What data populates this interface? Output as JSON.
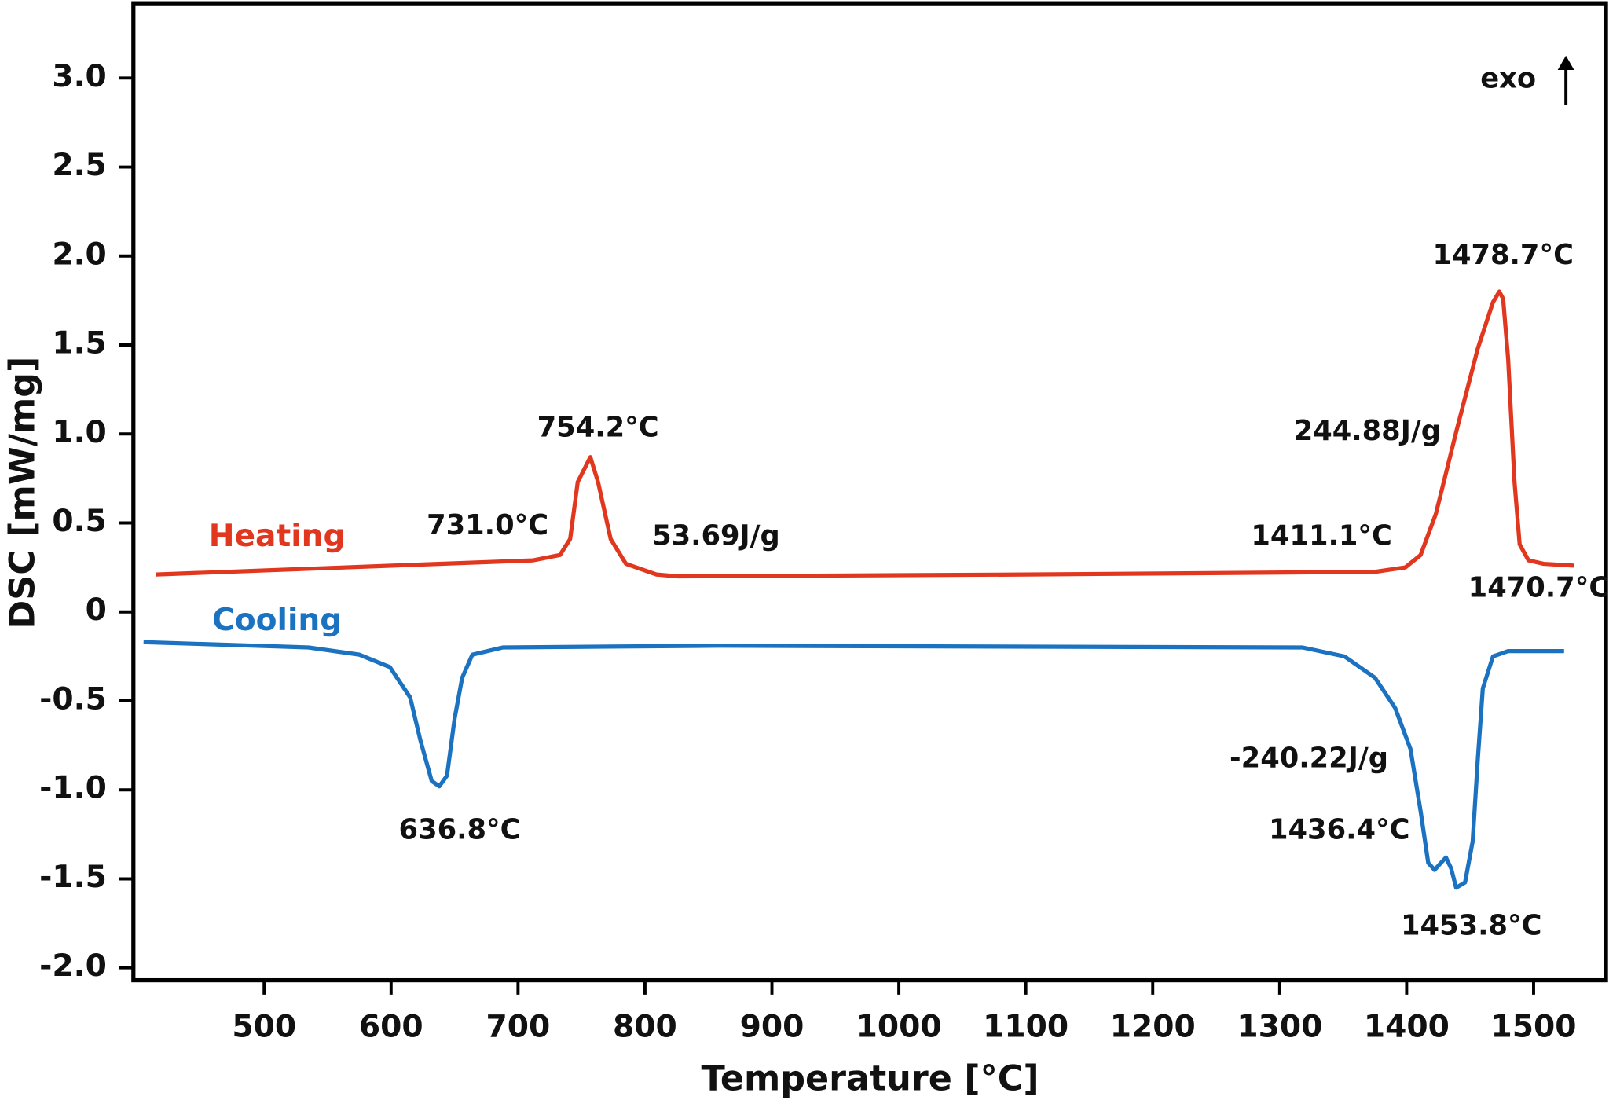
{
  "chart_data": {
    "type": "line",
    "xlabel": "Temperature [°C]",
    "ylabel": "DSC [mW/mg]",
    "xlim": [
      397,
      1557
    ],
    "ylim": [
      -2.07,
      3.42
    ],
    "xticks": [
      500,
      600,
      700,
      800,
      900,
      1000,
      1100,
      1200,
      1300,
      1400,
      1500
    ],
    "yticks": [
      {
        "value": 3,
        "label": "3.0"
      },
      2.5,
      {
        "value": 2,
        "label": "2.0"
      },
      1.5,
      {
        "value": 1,
        "label": "1.0"
      },
      0.5,
      0,
      -0.5,
      {
        "value": -1,
        "label": "-1.0"
      },
      -1.5,
      {
        "value": -2,
        "label": "-2.0"
      }
    ],
    "series": [
      {
        "name": "Heating",
        "color": "#e2371f",
        "x": [
          415,
          712,
          733,
          741,
          747,
          757,
          763,
          773,
          785,
          809,
          826,
          1100,
          1375,
          1399,
          1411,
          1423,
          1439,
          1456,
          1468,
          1473,
          1476,
          1480,
          1485,
          1489,
          1496,
          1508,
          1532
        ],
        "values": [
          0.21,
          0.29,
          0.32,
          0.41,
          0.73,
          0.87,
          0.73,
          0.41,
          0.27,
          0.21,
          0.2,
          0.21,
          0.225,
          0.25,
          0.32,
          0.55,
          1.01,
          1.48,
          1.74,
          1.8,
          1.76,
          1.42,
          0.73,
          0.38,
          0.29,
          0.27,
          0.26
        ]
      },
      {
        "name": "Cooling",
        "color": "#1a72c1",
        "x": [
          405,
          535,
          575,
          599,
          615,
          623,
          632,
          638,
          644,
          650,
          656,
          664,
          688,
          858,
          1318,
          1351,
          1375,
          1391,
          1403,
          1411,
          1417,
          1422,
          1427,
          1431,
          1435,
          1439,
          1446,
          1452,
          1456,
          1460,
          1468,
          1480,
          1524
        ],
        "values": [
          -0.17,
          -0.2,
          -0.24,
          -0.31,
          -0.48,
          -0.72,
          -0.95,
          -0.98,
          -0.92,
          -0.6,
          -0.37,
          -0.24,
          -0.2,
          -0.19,
          -0.2,
          -0.25,
          -0.37,
          -0.54,
          -0.77,
          -1.12,
          -1.41,
          -1.45,
          -1.41,
          -1.38,
          -1.44,
          -1.55,
          -1.52,
          -1.29,
          -0.83,
          -0.43,
          -0.25,
          -0.22,
          -0.22
        ]
      }
    ],
    "annotations": [
      {
        "text": "754.2°C",
        "x": 763,
        "y": 1.03
      },
      {
        "text": "731.0°C",
        "x": 676,
        "y": 0.48
      },
      {
        "text": "53.69J/g",
        "x": 856,
        "y": 0.42
      },
      {
        "text": "636.8°C",
        "x": 654,
        "y": -1.23
      },
      {
        "text": "1478.7°C",
        "x": 1476,
        "y": 2.0
      },
      {
        "text": "244.88J/g",
        "x": 1369,
        "y": 1.01
      },
      {
        "text": "1411.1°C",
        "x": 1333,
        "y": 0.42
      },
      {
        "text": "1470.7°C",
        "x": 1504,
        "y": 0.13
      },
      {
        "text": "-240.22J/g",
        "x": 1323,
        "y": -0.83
      },
      {
        "text": "1436.4°C",
        "x": 1347,
        "y": -1.23
      },
      {
        "text": "1453.8°C",
        "x": 1451,
        "y": -1.77
      },
      {
        "text": "exo",
        "x": 1480,
        "y": 2.99
      }
    ]
  }
}
